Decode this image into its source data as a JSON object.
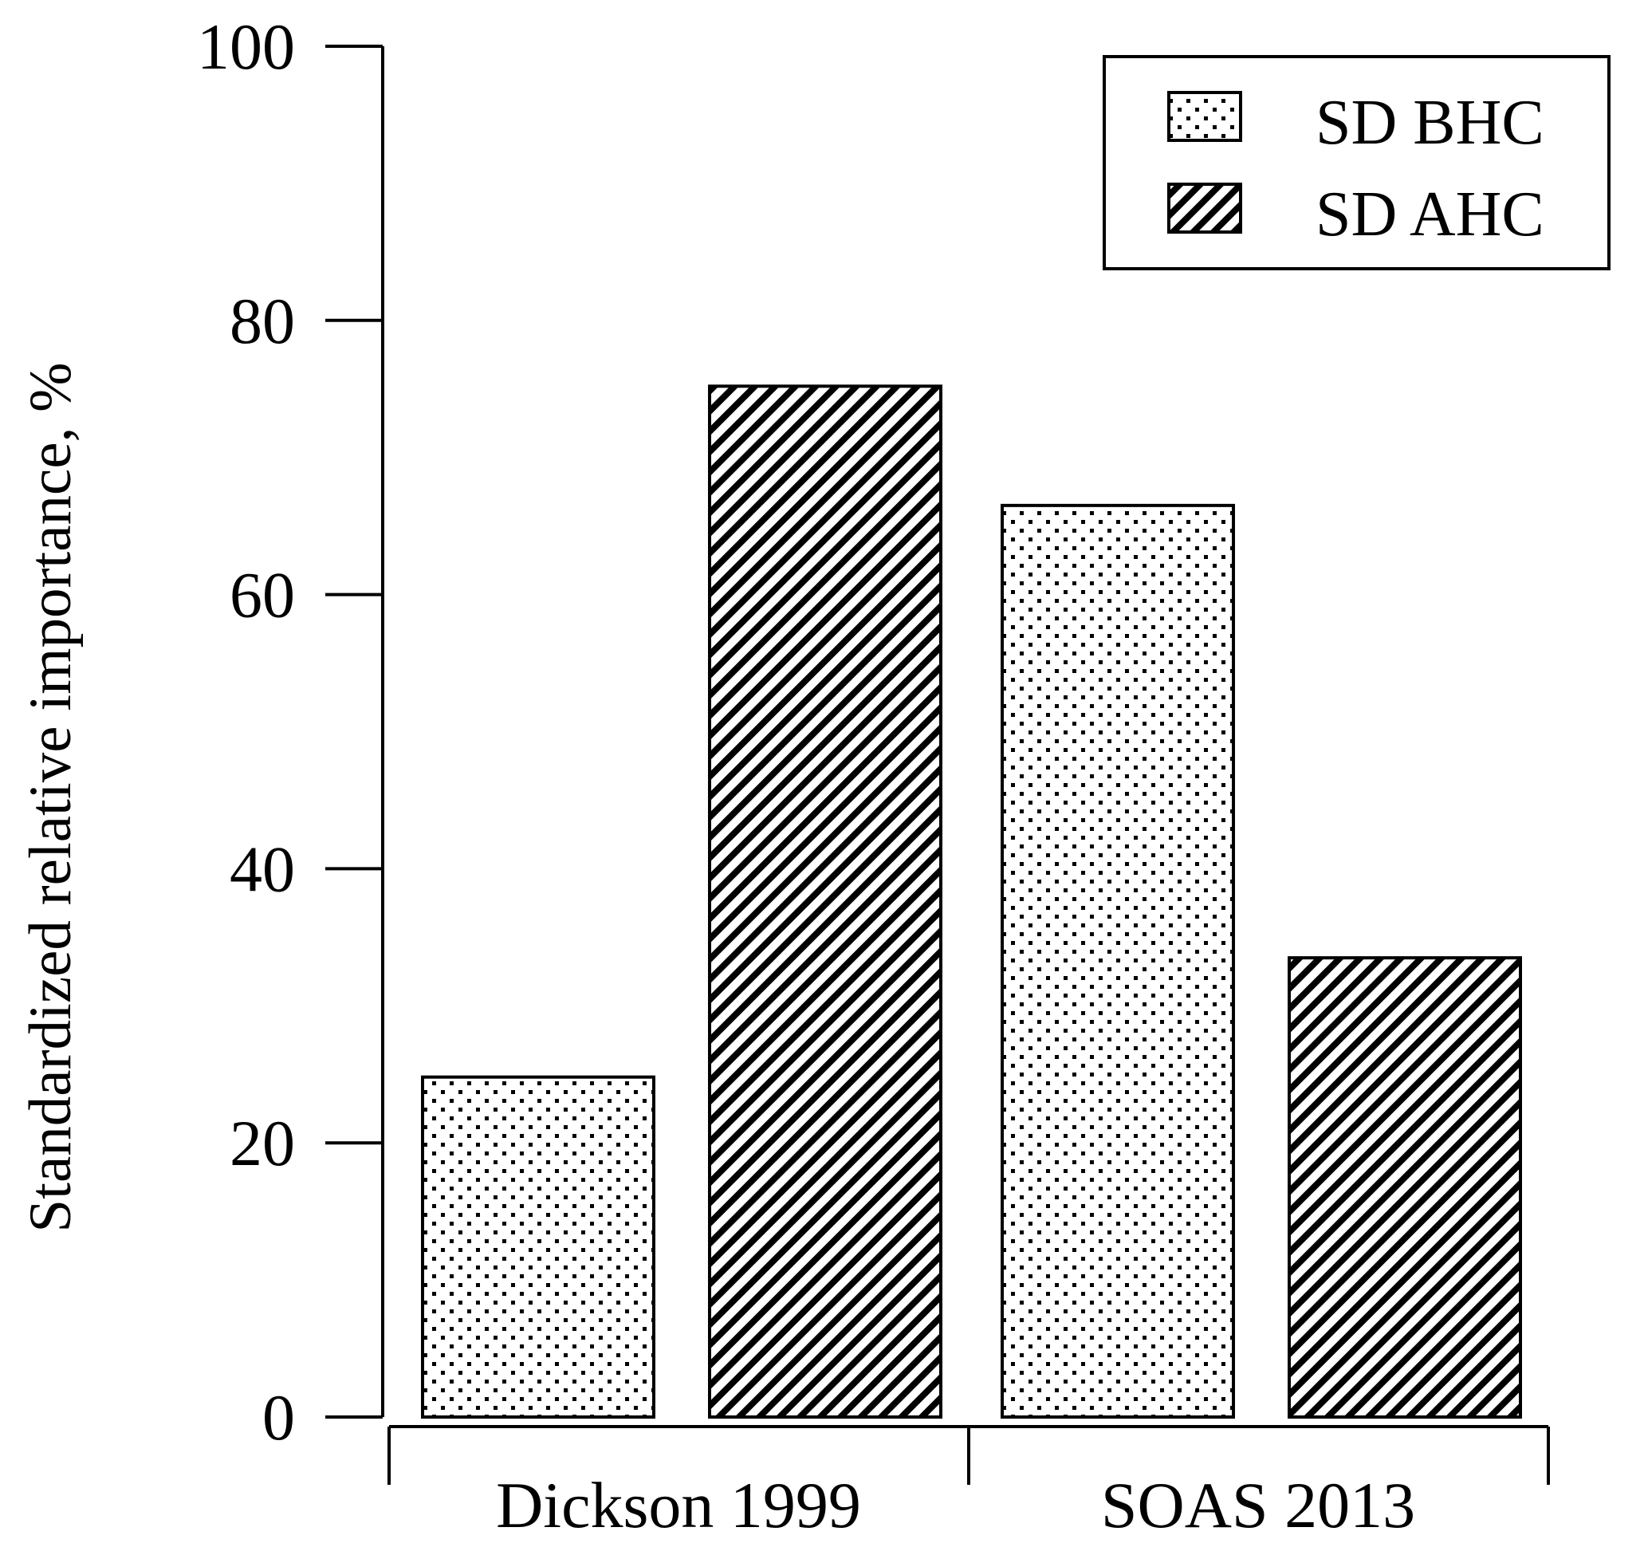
{
  "chart_data": {
    "type": "bar",
    "title": "",
    "xlabel": "",
    "ylabel": "Standardized relative importance, %",
    "ylim": [
      0,
      100
    ],
    "yticks": [
      "0",
      "20",
      "40",
      "60",
      "80",
      "100"
    ],
    "categories": [
      "Dickson 1999",
      "SOAS 2013"
    ],
    "series": [
      {
        "name": "SD BHC",
        "pattern": "dots",
        "values": [
          24.8,
          66.5
        ]
      },
      {
        "name": "SD AHC",
        "pattern": "hatch",
        "values": [
          75.2,
          33.5
        ]
      }
    ],
    "legend_position": "top-right",
    "grid": false,
    "colors": {
      "stroke": "#000000",
      "background": "#ffffff"
    }
  }
}
